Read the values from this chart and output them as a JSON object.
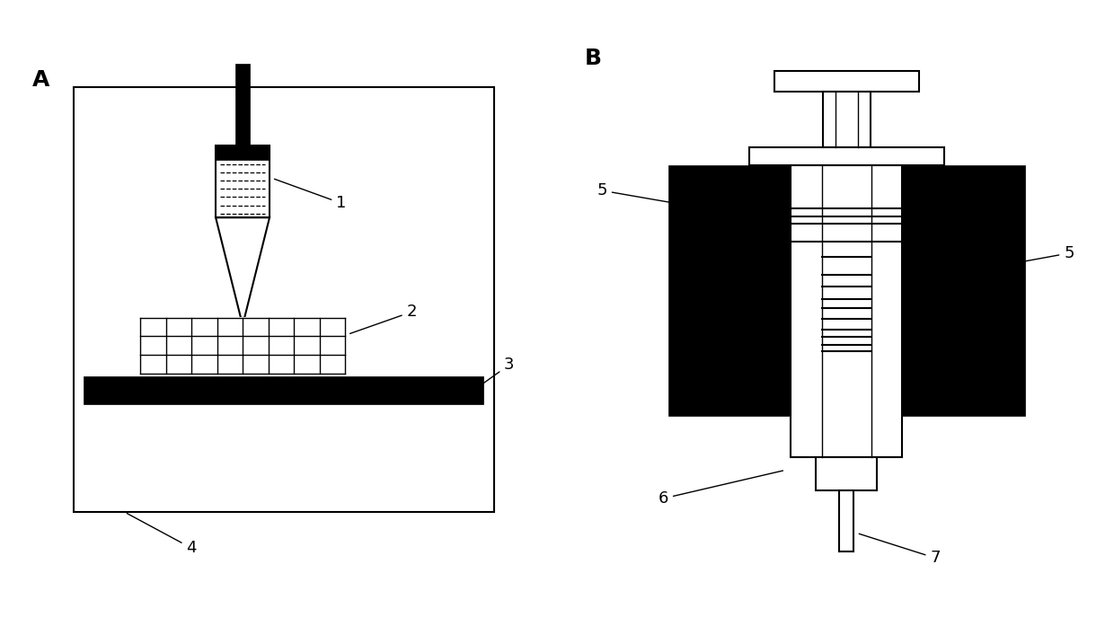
{
  "background_color": "#ffffff",
  "label_A": "A",
  "label_B": "B",
  "label_fontsize": 18,
  "annotation_fontsize": 13,
  "line_color": "#000000"
}
